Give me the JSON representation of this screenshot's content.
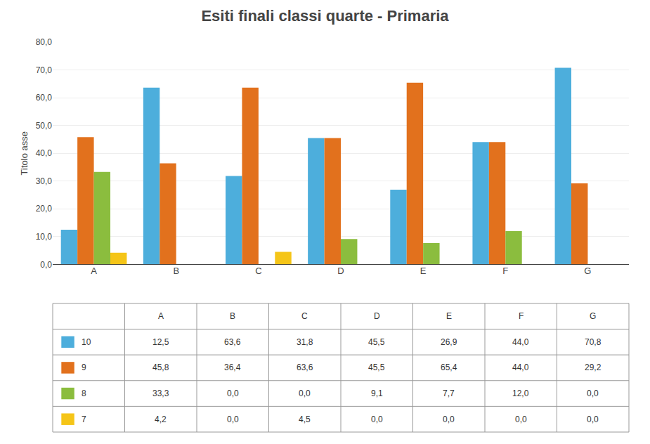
{
  "chart_data": {
    "type": "bar",
    "title": "Esiti finali classi quarte - Primaria",
    "ylabel": "Titolo asse",
    "categories": [
      "A",
      "B",
      "C",
      "D",
      "E",
      "F",
      "G"
    ],
    "series": [
      {
        "name": "10",
        "color": "#4DAEDC",
        "values": [
          12.5,
          63.6,
          31.8,
          45.5,
          26.9,
          44.0,
          70.8
        ],
        "value_labels": [
          "12,5",
          "63,6",
          "31,8",
          "45,5",
          "26,9",
          "44,0",
          "70,8"
        ]
      },
      {
        "name": "9",
        "color": "#E2711D",
        "values": [
          45.8,
          36.4,
          63.6,
          45.5,
          65.4,
          44.0,
          29.2
        ],
        "value_labels": [
          "45,8",
          "36,4",
          "63,6",
          "45,5",
          "65,4",
          "44,0",
          "29,2"
        ]
      },
      {
        "name": "8",
        "color": "#8BBD3E",
        "values": [
          33.3,
          0.0,
          0.0,
          9.1,
          7.7,
          12.0,
          0.0
        ],
        "value_labels": [
          "33,3",
          "0,0",
          "0,0",
          "9,1",
          "7,7",
          "12,0",
          "0,0"
        ]
      },
      {
        "name": "7",
        "color": "#F5C518",
        "values": [
          4.2,
          0.0,
          4.5,
          0.0,
          0.0,
          0.0,
          0.0
        ],
        "value_labels": [
          "4,2",
          "0,0",
          "4,5",
          "0,0",
          "0,0",
          "0,0",
          "0,0"
        ]
      }
    ],
    "ylim": [
      0,
      80
    ],
    "yticks": [
      {
        "value": 0,
        "label": "0,0"
      },
      {
        "value": 10,
        "label": "10,0"
      },
      {
        "value": 20,
        "label": "20,0"
      },
      {
        "value": 30,
        "label": "30,0"
      },
      {
        "value": 40,
        "label": "40,0"
      },
      {
        "value": 50,
        "label": "50,0"
      },
      {
        "value": 60,
        "label": "60,0"
      },
      {
        "value": 70,
        "label": "70,0"
      },
      {
        "value": 80,
        "label": "80,0"
      }
    ],
    "grid": true
  }
}
